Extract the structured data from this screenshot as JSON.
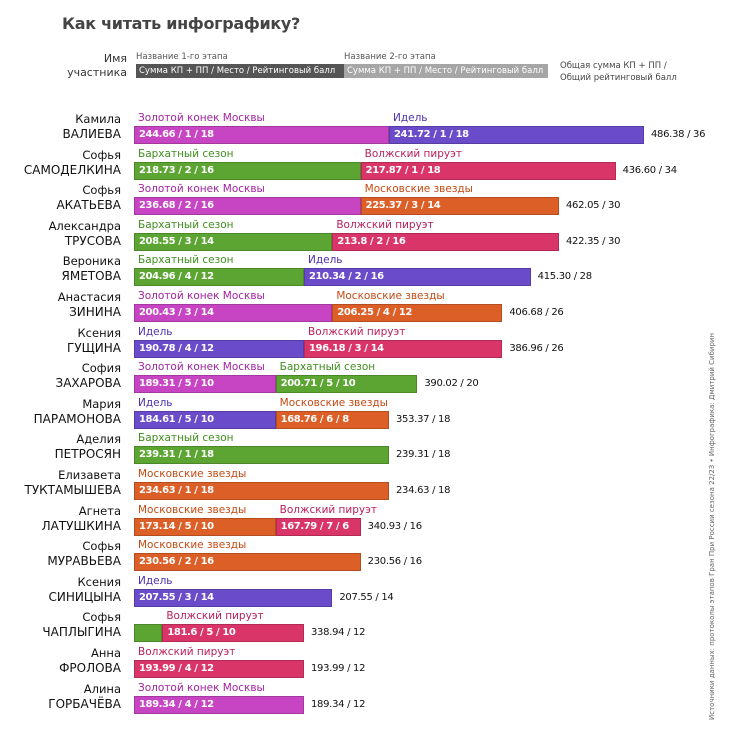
{
  "title": "Как читать инфографику?",
  "legend": {
    "name_label": "Имя участника",
    "stage1_label": "Название 1-го этапа",
    "stage2_label": "Название 2-го этапа",
    "bar_text": "Сумма КП + ПП / Место / Рейтинговый балл",
    "stage1_color": "#555555",
    "stage2_color": "#A6A6A6",
    "total_label": "Общая сумма КП + ПП / Общий рейтинговый балл"
  },
  "credits": "Источники данных: протоколы этапов Гран При России сезона 22/23 • Инфографика: Дмитрий Сибирин",
  "stages": {
    "Золотой конек Москвы": {
      "fill": "#C745C3",
      "text": "#A1239F"
    },
    "Идель": {
      "fill": "#6A4BC9",
      "text": "#4B2FA8"
    },
    "Бархатный сезон": {
      "fill": "#5CA533",
      "text": "#3E8E1E"
    },
    "Волжский пируэт": {
      "fill": "#DA3568",
      "text": "#B81E5A"
    },
    "Московские звезды": {
      "fill": "#DC5F28",
      "text": "#C44A14"
    }
  },
  "chart_data": {
    "type": "bar",
    "subtype": "stacked-horizontal",
    "title": "Как читать инфографику?",
    "xlabel": "Рейтинговый балл",
    "ylabel": "",
    "categories": [
      "Камила ВАЛИЕВА",
      "Софья САМОДЕЛКИНА",
      "Софья АКАТЬЕВА",
      "Александра ТРУСОВА",
      "Вероника ЯМЕТОВА",
      "Анастасия ЗИНИНА",
      "Ксения ГУЩИНА",
      "София ЗАХАРОВА",
      "Мария ПАРАМОНОВА",
      "Аделия ПЕТРОСЯН",
      "Елизавета ТУКТАМЫШЕВА",
      "Агнета ЛАТУШКИНА",
      "Софья МУРАВЬЕВА",
      "Ксения СИНИЦЫНА",
      "Софья ЧАПЛЫГИНА",
      "Анна ФРОЛОВА",
      "Алина ГОРБАЧЁВА"
    ],
    "rows": [
      {
        "first": "Камила",
        "last": "ВАЛИЕВА",
        "total": "486.38 / 36",
        "segments": [
          {
            "stage": "Золотой конек Москвы",
            "label": "244.66 / 1 / 18",
            "points": 18
          },
          {
            "stage": "Идель",
            "label": "241.72 / 1 / 18",
            "points": 18
          }
        ]
      },
      {
        "first": "Софья",
        "last": "САМОДЕЛКИНА",
        "total": "436.60 / 34",
        "segments": [
          {
            "stage": "Бархатный сезон",
            "label": "218.73 / 2 / 16",
            "points": 16
          },
          {
            "stage": "Волжский пируэт",
            "label": "217.87 / 1 / 18",
            "points": 18
          }
        ]
      },
      {
        "first": "Софья",
        "last": "АКАТЬЕВА",
        "total": "462.05 / 30",
        "segments": [
          {
            "stage": "Золотой конек Москвы",
            "label": "236.68 / 2 / 16",
            "points": 16
          },
          {
            "stage": "Московские звезды",
            "label": "225.37 / 3 / 14",
            "points": 14
          }
        ]
      },
      {
        "first": "Александра",
        "last": "ТРУСОВА",
        "total": "422.35 / 30",
        "segments": [
          {
            "stage": "Бархатный сезон",
            "label": "208.55 / 3 / 14",
            "points": 14
          },
          {
            "stage": "Волжский пируэт",
            "label": "213.8 / 2 / 16",
            "points": 16
          }
        ]
      },
      {
        "first": "Вероника",
        "last": "ЯМЕТОВА",
        "total": "415.30 / 28",
        "segments": [
          {
            "stage": "Бархатный сезон",
            "label": "204.96 / 4 / 12",
            "points": 12
          },
          {
            "stage": "Идель",
            "label": "210.34 / 2 / 16",
            "points": 16
          }
        ]
      },
      {
        "first": "Анастасия",
        "last": "ЗИНИНА",
        "total": "406.68 / 26",
        "segments": [
          {
            "stage": "Золотой конек Москвы",
            "label": "200.43 / 3 / 14",
            "points": 14
          },
          {
            "stage": "Московские звезды",
            "label": "206.25 / 4 / 12",
            "points": 12
          }
        ]
      },
      {
        "first": "Ксения",
        "last": "ГУЩИНА",
        "total": "386.96 / 26",
        "segments": [
          {
            "stage": "Идель",
            "label": "190.78 / 4 / 12",
            "points": 12
          },
          {
            "stage": "Волжский пируэт",
            "label": "196.18 / 3 / 14",
            "points": 14
          }
        ]
      },
      {
        "first": "София",
        "last": "ЗАХАРОВА",
        "total": "390.02 / 20",
        "segments": [
          {
            "stage": "Золотой конек Москвы",
            "label": "189.31 / 5 / 10",
            "points": 10
          },
          {
            "stage": "Бархатный сезон",
            "label": "200.71 / 5 / 10",
            "points": 10
          }
        ]
      },
      {
        "first": "Мария",
        "last": "ПАРАМОНОВА",
        "total": "353.37 / 18",
        "segments": [
          {
            "stage": "Идель",
            "label": "184.61 / 5 / 10",
            "points": 10
          },
          {
            "stage": "Московские звезды",
            "label": "168.76 / 6 / 8",
            "points": 8
          }
        ]
      },
      {
        "first": "Аделия",
        "last": "ПЕТРОСЯН",
        "total": "239.31 / 18",
        "segments": [
          {
            "stage": "Бархатный сезон",
            "label": "239.31 / 1 / 18",
            "points": 18
          }
        ]
      },
      {
        "first": "Елизавета",
        "last": "ТУКТАМЫШЕВА",
        "total": "234.63 / 18",
        "segments": [
          {
            "stage": "Московские звезды",
            "label": "234.63 / 1 / 18",
            "points": 18
          }
        ]
      },
      {
        "first": "Агнета",
        "last": "ЛАТУШКИНА",
        "total": "340.93 / 16",
        "segments": [
          {
            "stage": "Московские звезды",
            "label": "173.14 / 5 / 10",
            "points": 10
          },
          {
            "stage": "Волжский пируэт",
            "label": "167.79 / 7 / 6",
            "points": 6
          }
        ]
      },
      {
        "first": "Софья",
        "last": "МУРАВЬЕВА",
        "total": "230.56 / 16",
        "segments": [
          {
            "stage": "Московские звезды",
            "label": "230.56 / 2 / 16",
            "points": 16
          }
        ]
      },
      {
        "first": "Ксения",
        "last": "СИНИЦЫНА",
        "total": "207.55 / 14",
        "segments": [
          {
            "stage": "Идель",
            "label": "207.55 / 3 / 14",
            "points": 14
          }
        ]
      },
      {
        "first": "Софья",
        "last": "ЧАПЛЫГИНА",
        "total": "338.94 / 12",
        "segments": [
          {
            "stage": "Бархатный сезон",
            "label": "",
            "points": 2,
            "hide_stage": true
          },
          {
            "stage": "Волжский пируэт",
            "label": "181.6 / 5 / 10",
            "points": 10
          }
        ]
      },
      {
        "first": "Анна",
        "last": "ФРОЛОВА",
        "total": "193.99 / 12",
        "segments": [
          {
            "stage": "Волжский пируэт",
            "label": "193.99 / 4 / 12",
            "points": 12
          }
        ]
      },
      {
        "first": "Алина",
        "last": "ГОРБАЧЁВА",
        "total": "189.34 / 12",
        "segments": [
          {
            "stage": "Золотой конек Москвы",
            "label": "189.34 / 4 / 12",
            "points": 12
          }
        ]
      }
    ],
    "xlim": [
      0,
      36
    ]
  }
}
